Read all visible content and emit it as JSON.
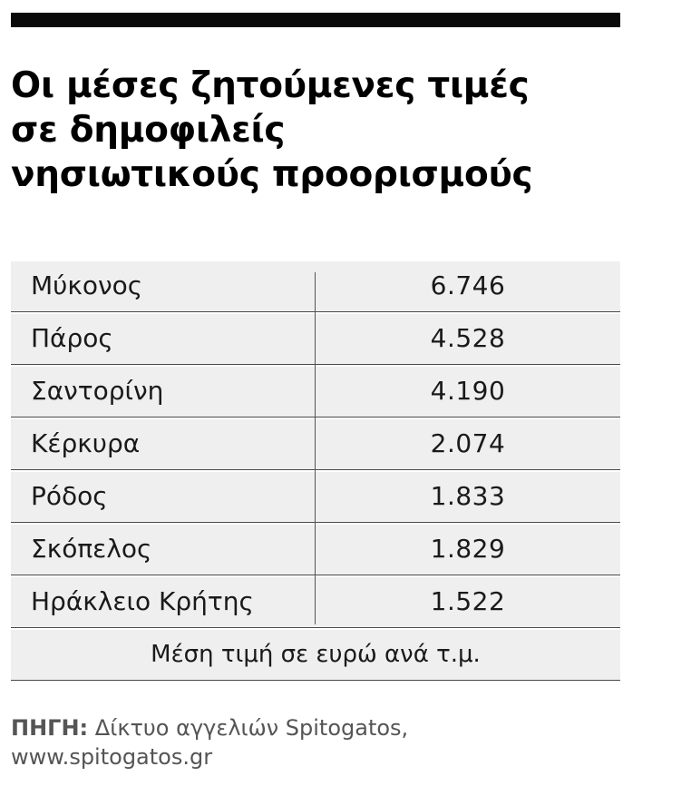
{
  "headline": {
    "line1": "Οι μέσες ζητούμενες τιμές",
    "line2": "σε δημοφιλείς",
    "line3": "νησιωτικούς προορισμούς"
  },
  "table": {
    "rows": [
      {
        "name": "Μύκονος",
        "value": "6.746"
      },
      {
        "name": "Πάρος",
        "value": "4.528"
      },
      {
        "name": "Σαντορίνη",
        "value": "4.190"
      },
      {
        "name": "Κέρκυρα",
        "value": "2.074"
      },
      {
        "name": "Ρόδος",
        "value": "1.833"
      },
      {
        "name": "Σκόπελος",
        "value": "1.829"
      },
      {
        "name": "Ηράκλειο Κρήτης",
        "value": "1.522"
      }
    ],
    "note": "Μέση τιμή σε ευρώ ανά τ.μ."
  },
  "source": {
    "label": "ΠΗΓΗ:",
    "text": " Δίκτυο αγγελιών Spitogatos,",
    "url": "www.spitogatos.gr"
  }
}
